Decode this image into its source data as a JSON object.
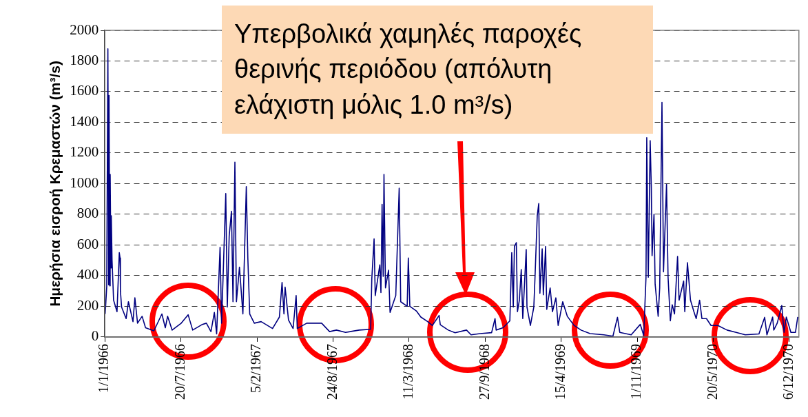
{
  "chart_data": {
    "type": "line",
    "ylabel": "Ημερήσια εισροή Κρεμαστών (m³/s)",
    "annotations": [
      "Υπερβολικά χαμηλές παροχές θερινής περιόδου (απόλυτη ελάχιστη μόλις 1.0 m³/s)"
    ],
    "color": "#000080",
    "x": [
      "1966-01-02",
      "1966-01-06",
      "1966-01-09",
      "1966-01-11",
      "1966-01-12",
      "1966-01-14",
      "1966-01-15",
      "1966-01-17",
      "1966-01-18",
      "1966-01-20",
      "1966-01-24",
      "1966-02-02",
      "1966-02-08",
      "1966-02-10",
      "1966-02-11",
      "1966-02-14",
      "1966-02-26",
      "1966-03-04",
      "1966-03-16",
      "1966-03-21",
      "1966-03-28",
      "1966-04-09",
      "1966-04-18",
      "1966-05-10",
      "1966-05-31",
      "1966-06-09",
      "1966-06-15",
      "1966-06-27",
      "1966-07-21",
      "1966-08-08",
      "1966-08-20",
      "1966-09-13",
      "1966-09-25",
      "1966-10-07",
      "1966-10-16",
      "1966-10-22",
      "1966-10-31",
      "1966-11-04",
      "1966-11-15",
      "1966-11-19",
      "1966-11-24",
      "1966-11-30",
      "1966-12-04",
      "1966-12-09",
      "1966-12-13",
      "1966-12-21",
      "1966-12-30",
      "1967-01-08",
      "1967-01-12",
      "1967-01-17",
      "1967-01-29",
      "1967-02-16",
      "1967-03-18",
      "1967-04-05",
      "1967-04-12",
      "1967-04-17",
      "1967-04-20",
      "1967-04-29",
      "1967-05-11",
      "1967-05-19",
      "1967-05-22",
      "1967-06-16",
      "1967-07-25",
      "1967-08-15",
      "1967-09-02",
      "1967-09-26",
      "1967-11-01",
      "1967-12-01",
      "1967-12-04",
      "1967-12-10",
      "1967-12-13",
      "1967-12-25",
      "1967-12-28",
      "1967-12-31",
      "1968-01-03",
      "1968-01-05",
      "1968-01-09",
      "1968-01-17",
      "1968-01-21",
      "1968-02-05",
      "1968-02-14",
      "1968-02-18",
      "1968-03-06",
      "1968-03-09",
      "1968-03-13",
      "1968-03-30",
      "1968-04-11",
      "1968-04-29",
      "1968-05-11",
      "1968-05-29",
      "1968-06-01",
      "1968-06-22",
      "1968-07-10",
      "1968-08-09",
      "1968-08-21",
      "1968-09-14",
      "1968-10-14",
      "1968-10-23",
      "1968-10-26",
      "1968-11-13",
      "1968-12-01",
      "1968-12-06",
      "1968-12-10",
      "1968-12-13",
      "1968-12-18",
      "1968-12-21",
      "1968-12-26",
      "1968-12-31",
      "1969-01-04",
      "1969-01-13",
      "1969-01-15",
      "1969-01-24",
      "1969-02-02",
      "1969-02-05",
      "1969-02-11",
      "1969-02-15",
      "1969-02-18",
      "1969-02-24",
      "1969-02-27",
      "1969-03-05",
      "1969-03-08",
      "1969-03-17",
      "1969-03-23",
      "1969-04-01",
      "1969-04-07",
      "1969-04-19",
      "1969-05-01",
      "1969-05-19",
      "1969-06-06",
      "1969-06-30",
      "1969-08-05",
      "1969-08-29",
      "1969-09-10",
      "1969-09-16",
      "1969-10-16",
      "1969-11-09",
      "1969-11-18",
      "1969-11-24",
      "1969-11-26",
      "1969-11-30",
      "1969-12-05",
      "1969-12-08",
      "1969-12-10",
      "1969-12-15",
      "1969-12-18",
      "1969-12-26",
      "1969-12-30",
      "1970-01-05",
      "1970-01-09",
      "1970-01-17",
      "1970-01-21",
      "1970-01-27",
      "1970-02-01",
      "1970-02-07",
      "1970-02-15",
      "1970-02-19",
      "1970-03-03",
      "1970-03-06",
      "1970-03-13",
      "1970-03-21",
      "1970-03-30",
      "1970-04-05",
      "1970-04-14",
      "1970-04-20",
      "1970-05-02",
      "1970-05-14",
      "1970-06-01",
      "1970-06-25",
      "1970-07-19",
      "1970-08-12",
      "1970-09-17",
      "1970-10-02",
      "1970-10-08",
      "1970-10-23",
      "1970-10-26",
      "1970-11-04",
      "1970-11-16",
      "1970-11-22",
      "1970-11-28",
      "1970-12-10",
      "1970-12-22",
      "1970-12-28"
    ],
    "values": [
      150,
      330,
      1880,
      340,
      1575,
      333,
      1060,
      450,
      790,
      500,
      240,
      165,
      550,
      515,
      300,
      195,
      120,
      230,
      100,
      255,
      90,
      135,
      60,
      40,
      150,
      60,
      135,
      45,
      90,
      145,
      45,
      80,
      90,
      35,
      160,
      20,
      585,
      90,
      935,
      195,
      660,
      820,
      230,
      1140,
      230,
      455,
      150,
      980,
      515,
      150,
      90,
      100,
      55,
      130,
      355,
      150,
      325,
      110,
      55,
      270,
      55,
      90,
      90,
      35,
      45,
      30,
      45,
      50,
      380,
      640,
      270,
      470,
      290,
      865,
      395,
      1060,
      320,
      435,
      160,
      270,
      970,
      230,
      200,
      515,
      200,
      170,
      130,
      100,
      75,
      140,
      80,
      45,
      28,
      45,
      14,
      22,
      28,
      120,
      45,
      60,
      105,
      550,
      195,
      590,
      615,
      165,
      240,
      440,
      120,
      570,
      195,
      75,
      195,
      380,
      790,
      870,
      285,
      575,
      275,
      590,
      180,
      320,
      165,
      255,
      75,
      230,
      135,
      75,
      45,
      22,
      14,
      5,
      128,
      30,
      14,
      82,
      10,
      390,
      1300,
      390,
      1280,
      970,
      530,
      800,
      345,
      135,
      320,
      1530,
      425,
      995,
      390,
      105,
      210,
      150,
      525,
      240,
      365,
      165,
      485,
      240,
      165,
      120,
      240,
      120,
      120,
      75,
      75,
      45,
      30,
      14,
      20,
      128,
      14,
      130,
      45,
      90,
      205,
      30,
      130,
      30,
      30,
      130
    ],
    "xlim": [
      "1966-01-01",
      "1970-12-31"
    ],
    "xticks": [
      {
        "value": "1966-01-01",
        "label": "1/1/1966"
      },
      {
        "value": "1966-07-20",
        "label": "20/7/1966"
      },
      {
        "value": "1967-02-05",
        "label": "5/2/1967"
      },
      {
        "value": "1967-08-24",
        "label": "24/8/1967"
      },
      {
        "value": "1968-03-11",
        "label": "11/3/1968"
      },
      {
        "value": "1968-09-27",
        "label": "27/9/1968"
      },
      {
        "value": "1969-04-15",
        "label": "15/4/1969"
      },
      {
        "value": "1969-11-01",
        "label": "1/11/1969"
      },
      {
        "value": "1970-05-20",
        "label": "20/5/1970"
      },
      {
        "value": "1970-12-06",
        "label": "6/12/1970"
      }
    ],
    "ylim": [
      0,
      2000
    ],
    "yticks": [
      0,
      200,
      400,
      600,
      800,
      1000,
      1200,
      1400,
      1600,
      1800,
      2000
    ],
    "grid": "y",
    "legend": false,
    "marker": "none",
    "line_style": "solid"
  }
}
